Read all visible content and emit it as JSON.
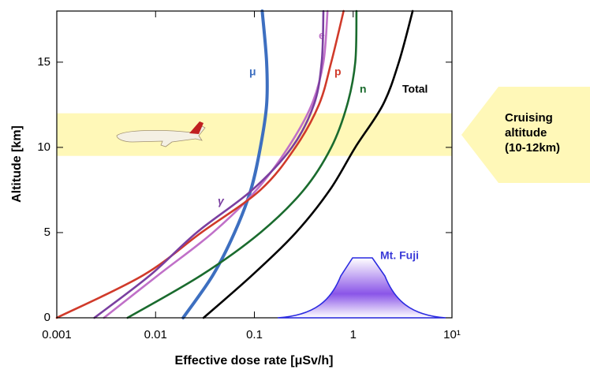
{
  "chart_data": {
    "type": "line",
    "xscale": "log",
    "x_label": "Effective dose rate [μSv/h]",
    "y_label": "Altitude  [km]",
    "xlim": [
      0.001,
      10
    ],
    "xticks": [
      0.001,
      0.01,
      0.1,
      1,
      {
        "value": 10,
        "label": "10¹"
      }
    ],
    "ylim": [
      0,
      18
    ],
    "yticks": [
      0,
      5,
      10,
      15
    ],
    "y": [
      0,
      2.5,
      5,
      7.5,
      10,
      12.5,
      15,
      18
    ],
    "series": [
      {
        "name": "μ",
        "color": "#3d6fc0",
        "values": [
          0.019,
          0.038,
          0.063,
          0.092,
          0.115,
          0.133,
          0.133,
          0.12
        ]
      },
      {
        "name": "e",
        "color": "#c070c8",
        "values": [
          0.003,
          0.0106,
          0.038,
          0.105,
          0.22,
          0.38,
          0.5,
          0.55
        ]
      },
      {
        "name": "p",
        "color": "#d03a2a",
        "values": [
          0.001,
          0.0075,
          0.029,
          0.115,
          0.26,
          0.45,
          0.6,
          0.8
        ]
      },
      {
        "name": "n",
        "color": "#1a6b2e",
        "values": [
          0.0052,
          0.029,
          0.115,
          0.316,
          0.6,
          0.87,
          1.05,
          1.08
        ]
      },
      {
        "name": "Total",
        "color": "#000000",
        "values": [
          0.0306,
          0.095,
          0.263,
          0.58,
          1.05,
          2.0,
          2.9,
          4.0
        ]
      },
      {
        "name": "γ",
        "color": "#7a3fa0",
        "values": [
          0.0024,
          0.0088,
          0.026,
          0.095,
          0.24,
          0.4,
          0.48,
          0.5
        ]
      }
    ],
    "cruise_band": [
      9.5,
      12
    ],
    "cruise_label": [
      "Cruising",
      "altitude",
      "(10-12km)"
    ],
    "fuji_label": "Mt. Fuji"
  }
}
